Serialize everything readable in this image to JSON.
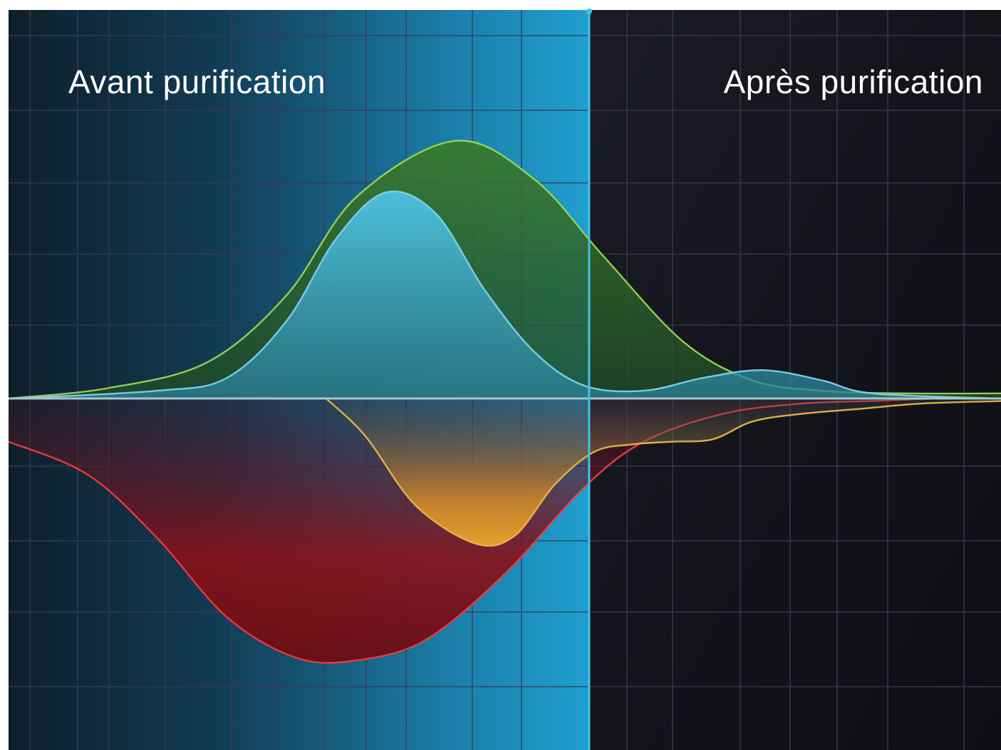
{
  "chart_data": {
    "type": "area",
    "title": "",
    "xlabel": "",
    "ylabel": "",
    "grid": true,
    "legend": "none",
    "xlim": [
      0,
      100
    ],
    "ylim": [
      -100,
      100
    ],
    "baseline": 0,
    "divider_x": 58.5,
    "labels": {
      "before": "Avant purification",
      "after": "Après purification"
    },
    "colors": {
      "background": "#14151d",
      "grid": "#39395a",
      "highlight": "#1f9fd0",
      "divider": "#3fc4e8",
      "baseline": "#a9c4cc"
    },
    "series": [
      {
        "color": "#9bd45a",
        "fill": "#3e7a2e",
        "side": "positive",
        "points": [
          [
            0,
            0
          ],
          [
            10,
            4
          ],
          [
            20,
            14
          ],
          [
            28,
            40
          ],
          [
            35,
            78
          ],
          [
            45,
            100
          ],
          [
            53,
            85
          ],
          [
            60,
            55
          ],
          [
            68,
            22
          ],
          [
            75,
            7
          ],
          [
            82,
            3
          ],
          [
            90,
            2
          ],
          [
            100,
            2
          ]
        ]
      },
      {
        "color": "#7dd2e8",
        "fill": "#46b8d6",
        "side": "positive",
        "points": [
          [
            0,
            0
          ],
          [
            15,
            3
          ],
          [
            22,
            8
          ],
          [
            28,
            30
          ],
          [
            33,
            62
          ],
          [
            38,
            80
          ],
          [
            43,
            72
          ],
          [
            48,
            42
          ],
          [
            53,
            18
          ],
          [
            58,
            5
          ],
          [
            64,
            3
          ],
          [
            70,
            8
          ],
          [
            76,
            11
          ],
          [
            82,
            7
          ],
          [
            87,
            2
          ],
          [
            100,
            0
          ]
        ]
      },
      {
        "color": "#e8b54a",
        "fill": "#d8912c",
        "side": "negative",
        "points": [
          [
            32,
            0
          ],
          [
            36,
            -15
          ],
          [
            41,
            -42
          ],
          [
            47,
            -57
          ],
          [
            51,
            -54
          ],
          [
            55,
            -34
          ],
          [
            59,
            -21
          ],
          [
            63,
            -18
          ],
          [
            67,
            -17
          ],
          [
            71,
            -16
          ],
          [
            75,
            -9
          ],
          [
            80,
            -6
          ],
          [
            86,
            -4
          ],
          [
            92,
            -2
          ],
          [
            100,
            -1
          ]
        ]
      },
      {
        "color": "#ef3b42",
        "fill": "#8a1418",
        "side": "negative",
        "points": [
          [
            0,
            -17
          ],
          [
            8,
            -30
          ],
          [
            15,
            -55
          ],
          [
            22,
            -86
          ],
          [
            29,
            -102
          ],
          [
            35,
            -103
          ],
          [
            42,
            -95
          ],
          [
            50,
            -69
          ],
          [
            58,
            -35
          ],
          [
            64,
            -17
          ],
          [
            72,
            -6
          ],
          [
            80,
            -2
          ],
          [
            87,
            -1
          ],
          [
            94,
            0
          ],
          [
            100,
            0
          ]
        ]
      }
    ]
  }
}
